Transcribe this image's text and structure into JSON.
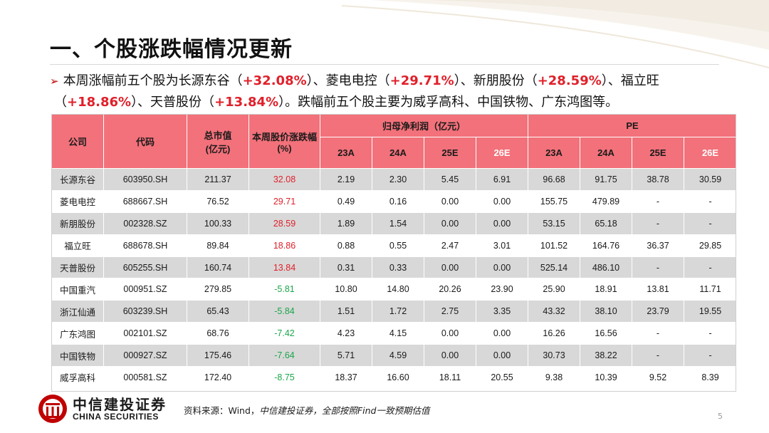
{
  "title": "一、个股涨跌幅情况更新",
  "summary": {
    "arrow": "➢",
    "p1": "本周涨幅前五个股为长源东谷（",
    "v1": "+32.08%",
    "p2": "）、菱电电控（",
    "v2": "+29.71%",
    "p3": "）、新朋股份（",
    "v3": "+28.59%",
    "p4": "）、福立旺",
    "p5": "（",
    "v4": "+18.86%",
    "p6": "）、天普股份（",
    "v5": "+13.84%",
    "p7": "）。跌幅前五个股主要为威孚高科、中国铁物、广东鸿图等。"
  },
  "table": {
    "headers": {
      "company": "公司",
      "code": "代码",
      "mktcap": "总市值",
      "mktcap_unit": "(亿元)",
      "weekly_change": "本周股价涨跌幅",
      "weekly_change_unit": "(%)",
      "net_profit_group": "归母净利润（亿元）",
      "pe_group": "PE",
      "years": [
        "23A",
        "24A",
        "25E",
        "26E"
      ]
    },
    "rows": [
      {
        "company": "长源东谷",
        "code": "603950.SH",
        "mktcap": "211.37",
        "change": "32.08",
        "np": [
          "2.19",
          "2.30",
          "5.45",
          "6.91"
        ],
        "pe": [
          "96.68",
          "91.75",
          "38.78",
          "30.59"
        ]
      },
      {
        "company": "菱电电控",
        "code": "688667.SH",
        "mktcap": "76.52",
        "change": "29.71",
        "np": [
          "0.49",
          "0.16",
          "0.00",
          "0.00"
        ],
        "pe": [
          "155.75",
          "479.89",
          "-",
          "-"
        ]
      },
      {
        "company": "新朋股份",
        "code": "002328.SZ",
        "mktcap": "100.33",
        "change": "28.59",
        "np": [
          "1.89",
          "1.54",
          "0.00",
          "0.00"
        ],
        "pe": [
          "53.15",
          "65.18",
          "-",
          "-"
        ]
      },
      {
        "company": "福立旺",
        "code": "688678.SH",
        "mktcap": "89.84",
        "change": "18.86",
        "np": [
          "0.88",
          "0.55",
          "2.47",
          "3.01"
        ],
        "pe": [
          "101.52",
          "164.76",
          "36.37",
          "29.85"
        ]
      },
      {
        "company": "天普股份",
        "code": "605255.SH",
        "mktcap": "160.74",
        "change": "13.84",
        "np": [
          "0.31",
          "0.33",
          "0.00",
          "0.00"
        ],
        "pe": [
          "525.14",
          "486.10",
          "-",
          "-"
        ]
      },
      {
        "company": "中国重汽",
        "code": "000951.SZ",
        "mktcap": "279.85",
        "change": "-5.81",
        "np": [
          "10.80",
          "14.80",
          "20.26",
          "23.90"
        ],
        "pe": [
          "25.90",
          "18.91",
          "13.81",
          "11.71"
        ]
      },
      {
        "company": "浙江仙通",
        "code": "603239.SH",
        "mktcap": "65.43",
        "change": "-5.84",
        "np": [
          "1.51",
          "1.72",
          "2.75",
          "3.35"
        ],
        "pe": [
          "43.32",
          "38.10",
          "23.79",
          "19.55"
        ]
      },
      {
        "company": "广东鸿图",
        "code": "002101.SZ",
        "mktcap": "68.76",
        "change": "-7.42",
        "np": [
          "4.23",
          "4.15",
          "0.00",
          "0.00"
        ],
        "pe": [
          "16.26",
          "16.56",
          "-",
          "-"
        ]
      },
      {
        "company": "中国铁物",
        "code": "000927.SZ",
        "mktcap": "175.46",
        "change": "-7.64",
        "np": [
          "5.71",
          "4.59",
          "0.00",
          "0.00"
        ],
        "pe": [
          "30.73",
          "38.22",
          "-",
          "-"
        ]
      },
      {
        "company": "威孚高科",
        "code": "000581.SZ",
        "mktcap": "172.40",
        "change": "-8.75",
        "np": [
          "18.37",
          "16.60",
          "18.11",
          "20.55"
        ],
        "pe": [
          "9.38",
          "10.39",
          "9.52",
          "8.39"
        ]
      }
    ]
  },
  "footer": {
    "logo_cn": "中信建投证券",
    "logo_en": "CHINA SECURITIES",
    "source_label": "资料来源：Wind，",
    "source_note": "中信建投证券，全部按照Find一致预期估值",
    "page": "5"
  },
  "colors": {
    "header_bg": "#f2717a",
    "up": "#e0202a",
    "down": "#1aa64a",
    "brand_red": "#c00000"
  }
}
